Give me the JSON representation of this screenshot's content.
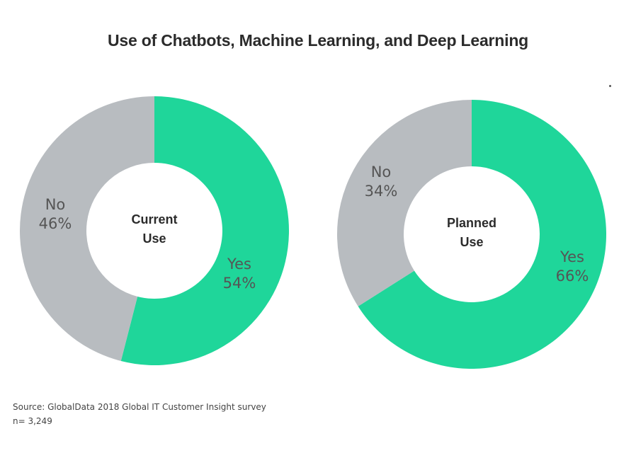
{
  "title": "Use of Chatbots, Machine Learning, and Deep Learning",
  "source": "Source:  GlobalData 2018 Global IT Customer Insight survey",
  "sample": "n= 3,249",
  "colors": {
    "yes": "#1fd69a",
    "no": "#b8bcc0",
    "slice_text": "#555555",
    "center_text": "#2b2b2b"
  },
  "chart_data": [
    {
      "type": "pie",
      "center_label": [
        "Current",
        "Use"
      ],
      "slices": [
        {
          "label": "Yes",
          "value": 54,
          "value_label": "54%"
        },
        {
          "label": "No",
          "value": 46,
          "value_label": "46%"
        }
      ]
    },
    {
      "type": "pie",
      "center_label": [
        "Planned",
        "Use"
      ],
      "slices": [
        {
          "label": "Yes",
          "value": 66,
          "value_label": "66%"
        },
        {
          "label": "No",
          "value": 34,
          "value_label": "34%"
        }
      ]
    }
  ]
}
